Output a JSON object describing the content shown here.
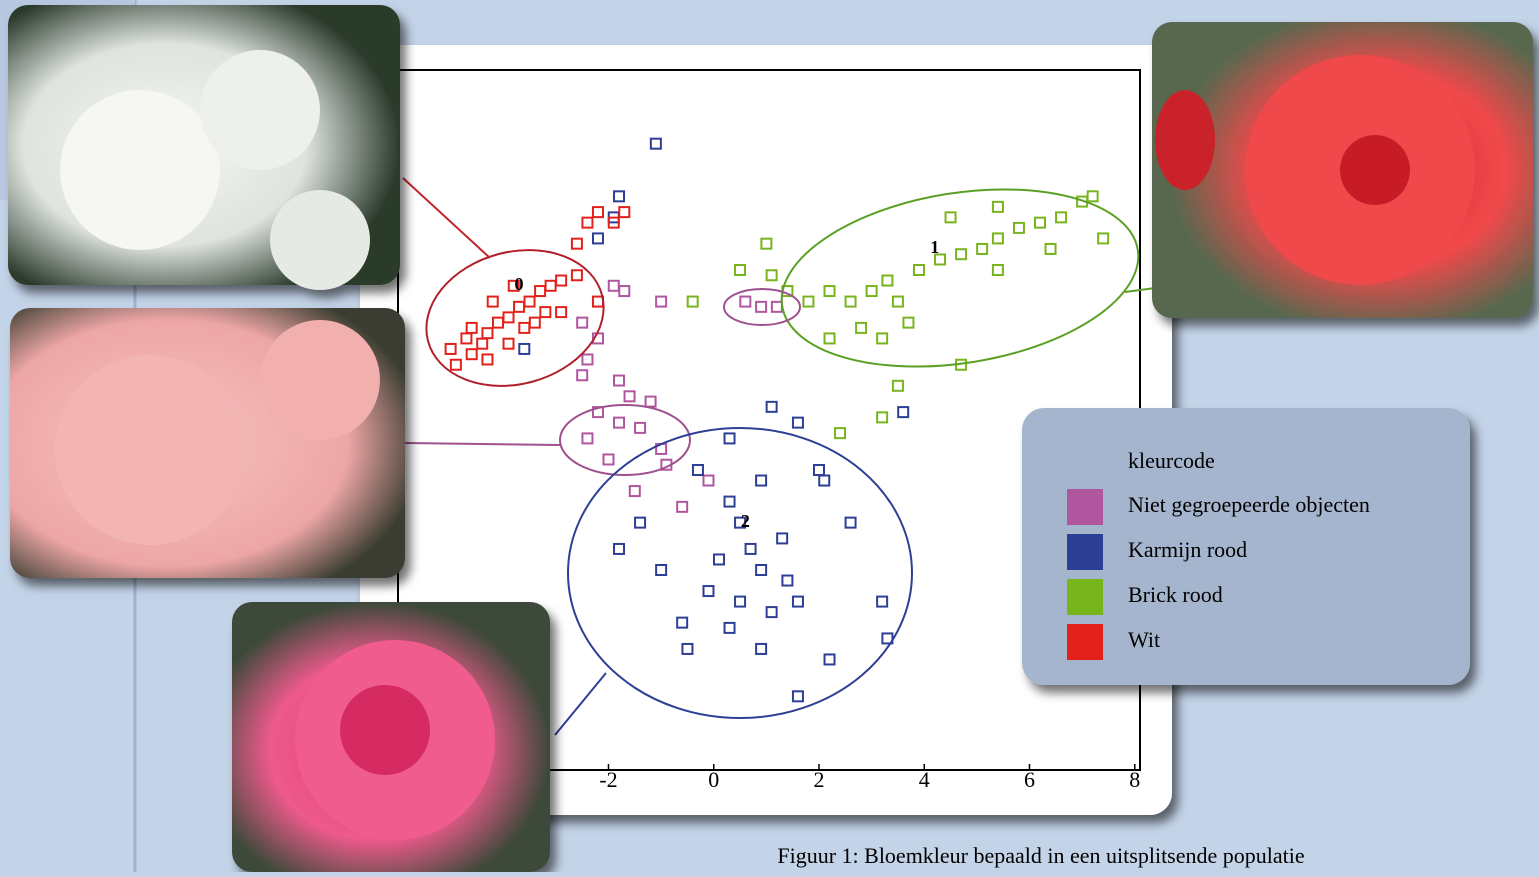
{
  "chart_data": {
    "type": "scatter",
    "xlim": [
      -6,
      8.1
    ],
    "xticks": [
      -2,
      0,
      2,
      4,
      6,
      8
    ],
    "ylim": [
      -8,
      5.3
    ],
    "legend_title": "kleurcode",
    "legend": "right",
    "caption": "Figuur 1: Bloemkleur bepaald in een uitsplitsende populatie",
    "series": [
      {
        "name": "Niet gegroepeerde objecten",
        "color": "#b0569f",
        "x": [
          -2.5,
          -2.2,
          -2.4,
          -2.5,
          -1.8,
          -1.6,
          -1.0,
          -1.7,
          -1.9,
          0.6,
          0.9,
          1.2,
          -2.2,
          -1.8,
          -2.4,
          -1.4,
          -1.0,
          -2.0,
          -1.2,
          -0.9,
          -0.1,
          -0.6,
          -1.5
        ],
        "values": [
          0.5,
          0.2,
          -0.2,
          -0.5,
          -0.6,
          -0.9,
          0.9,
          1.1,
          1.2,
          0.9,
          0.8,
          0.8,
          -1.2,
          -1.4,
          -1.7,
          -1.5,
          -1.9,
          -2.1,
          -1.0,
          -2.2,
          -2.5,
          -3.0,
          -2.7
        ]
      },
      {
        "name": "Karmijn rood",
        "color": "#2d3f95",
        "x": [
          -1.1,
          -1.8,
          -1.9,
          -2.2,
          -3.6,
          1.1,
          0.3,
          -0.3,
          0.9,
          1.6,
          2.0,
          0.5,
          1.3,
          0.1,
          0.9,
          1.4,
          0.5,
          1.1,
          -0.1,
          1.6,
          0.7,
          0.3,
          -0.6,
          -1.0,
          -1.8,
          -0.5,
          0.9,
          2.2,
          3.2,
          3.3,
          1.6,
          2.6,
          2.1,
          3.6,
          -1.4,
          0.3
        ],
        "values": [
          3.9,
          2.9,
          2.5,
          2.1,
          0.0,
          -1.1,
          -1.7,
          -2.3,
          -2.5,
          -1.4,
          -2.3,
          -3.3,
          -3.6,
          -4.0,
          -4.2,
          -4.4,
          -4.8,
          -5.0,
          -4.6,
          -4.8,
          -3.8,
          -5.3,
          -5.2,
          -4.2,
          -3.8,
          -5.7,
          -5.7,
          -5.9,
          -4.8,
          -5.5,
          -6.6,
          -3.3,
          -2.5,
          -1.2,
          -3.3,
          -2.9
        ]
      },
      {
        "name": "Brick rood",
        "color": "#78b41e",
        "x": [
          0.5,
          1.1,
          1.4,
          1.8,
          2.2,
          2.6,
          3.0,
          3.3,
          3.5,
          3.9,
          4.3,
          4.7,
          5.1,
          5.4,
          5.8,
          6.2,
          6.6,
          7.0,
          7.2,
          7.4,
          4.5,
          5.4,
          3.7,
          3.2,
          4.7,
          3.5,
          3.2,
          -0.4,
          1.0,
          2.8,
          2.2,
          5.4,
          6.4,
          2.4
        ],
        "values": [
          1.5,
          1.4,
          1.1,
          0.9,
          1.1,
          0.9,
          1.1,
          1.3,
          0.9,
          1.5,
          1.7,
          1.8,
          1.9,
          2.1,
          2.3,
          2.4,
          2.5,
          2.8,
          2.9,
          2.1,
          2.5,
          2.7,
          0.5,
          0.2,
          -0.3,
          -0.7,
          -1.3,
          0.9,
          2.0,
          0.4,
          0.2,
          1.5,
          1.9,
          -1.6
        ]
      },
      {
        "name": "Wit",
        "color": "#e3211b",
        "x": [
          -4.9,
          -4.6,
          -4.4,
          -4.3,
          -4.1,
          -3.9,
          -3.7,
          -3.5,
          -3.3,
          -3.1,
          -2.9,
          -2.6,
          -4.7,
          -4.3,
          -3.9,
          -3.6,
          -3.2,
          -4.2,
          -3.8,
          -2.6,
          -2.4,
          -2.2,
          -1.9,
          -2.9,
          -5.0,
          -4.6,
          -3.4,
          -2.2,
          -1.7
        ],
        "values": [
          -0.3,
          -0.1,
          0.1,
          0.3,
          0.5,
          0.6,
          0.8,
          0.9,
          1.1,
          1.2,
          1.3,
          1.4,
          0.2,
          -0.2,
          0.1,
          0.4,
          0.7,
          0.9,
          1.2,
          2.0,
          2.4,
          2.6,
          2.4,
          0.7,
          0.0,
          0.4,
          0.5,
          0.9,
          2.6
        ]
      }
    ],
    "annotations": [
      {
        "text": "0",
        "x": -3.7,
        "y": 1.2
      },
      {
        "text": "1",
        "x": 4.2,
        "y": 1.9
      },
      {
        "text": "2",
        "x": 0.6,
        "y": -3.3
      }
    ]
  }
}
